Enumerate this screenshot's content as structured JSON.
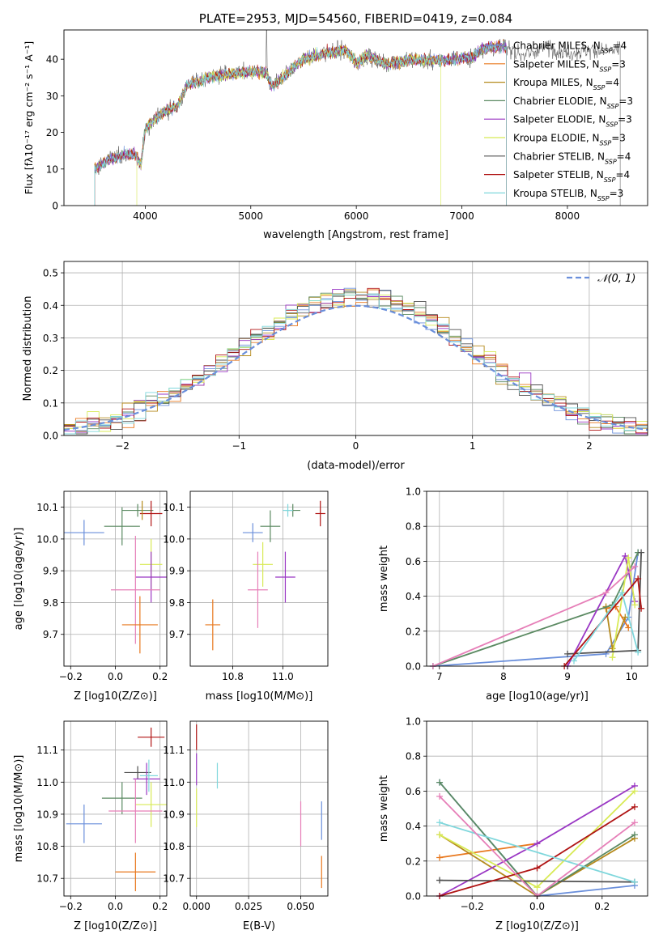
{
  "colors": [
    "#6a8fdb",
    "#e8781e",
    "#b58a1c",
    "#5b8a62",
    "#9a37c4",
    "#d8ea55",
    "#505050",
    "#b01414",
    "#7fd7dc"
  ],
  "extra_colors": {
    "pink": "#e67fb8",
    "black": "#000000"
  },
  "chart_data": [
    {
      "id": "spectrum",
      "type": "line",
      "title": "PLATE=2953, MJD=54560, FIBERID=0419, z=0.084",
      "xlabel": "wavelength [Angstrom, rest frame]",
      "ylabel": "Flux [fλ10⁻¹⁷ erg cm⁻² s⁻¹ A⁻¹]",
      "xlim": [
        3230,
        8760
      ],
      "ylim": [
        0,
        48
      ],
      "xticks": [
        "4000",
        "5000",
        "6000",
        "7000",
        "8000"
      ],
      "yticks": [
        "0",
        "10",
        "20",
        "30",
        "40"
      ],
      "grid": false,
      "legend_position": "right",
      "legend": [
        {
          "label": "Chabrier MILES, N",
          "sub": "SSP",
          "suffix": "=4"
        },
        {
          "label": "Salpeter MILES, N",
          "sub": "SSP",
          "suffix": "=3"
        },
        {
          "label": "Kroupa MILES, N",
          "sub": "SSP",
          "suffix": "=4"
        },
        {
          "label": "Chabrier ELODIE, N",
          "sub": "SSP",
          "suffix": "=3"
        },
        {
          "label": "Salpeter ELODIE, N",
          "sub": "SSP",
          "suffix": "=3"
        },
        {
          "label": "Kroupa ELODIE, N",
          "sub": "SSP",
          "suffix": "=3"
        },
        {
          "label": "Chabrier STELIB, N",
          "sub": "SSP",
          "suffix": "=4"
        },
        {
          "label": "Salpeter STELIB, N",
          "sub": "SSP",
          "suffix": "=4"
        },
        {
          "label": "Kroupa STELIB, N",
          "sub": "SSP",
          "suffix": "=3"
        }
      ],
      "continuum": [
        [
          3520,
          10
        ],
        [
          3650,
          12.5
        ],
        [
          3800,
          14
        ],
        [
          3900,
          14
        ],
        [
          3960,
          11
        ],
        [
          4000,
          21
        ],
        [
          4100,
          24
        ],
        [
          4200,
          26
        ],
        [
          4300,
          27
        ],
        [
          4400,
          33
        ],
        [
          4500,
          34
        ],
        [
          4600,
          35
        ],
        [
          4800,
          36
        ],
        [
          5000,
          36.5
        ],
        [
          5150,
          36.5
        ],
        [
          5200,
          32.5
        ],
        [
          5300,
          35
        ],
        [
          5500,
          40
        ],
        [
          5700,
          41.5
        ],
        [
          5900,
          42.5
        ],
        [
          6000,
          39
        ],
        [
          6100,
          41
        ],
        [
          6300,
          38.5
        ],
        [
          6500,
          40
        ],
        [
          6700,
          39.5
        ],
        [
          6900,
          40
        ],
        [
          7100,
          40.5
        ],
        [
          7200,
          43
        ],
        [
          7400,
          43.5
        ],
        [
          7600,
          41
        ],
        [
          7800,
          43.5
        ],
        [
          8000,
          41.5
        ],
        [
          8200,
          42.5
        ],
        [
          8500,
          42.5
        ]
      ],
      "model_ends": [
        7420,
        7420,
        7420,
        7420,
        7420,
        7420,
        7420,
        7420,
        7420
      ],
      "model_end_overrides": {
        "5": 6800
      },
      "model_starts": {
        "5": 3920
      }
    },
    {
      "id": "residuals",
      "type": "histogram",
      "xlabel": "(data-model)/error",
      "ylabel": "Normed distribution",
      "xlim": [
        -2.5,
        2.5
      ],
      "ylim": [
        0,
        0.535
      ],
      "xticks": [
        "-2",
        "-1",
        "0",
        "1",
        "2"
      ],
      "yticks": [
        "0.0",
        "0.1",
        "0.2",
        "0.3",
        "0.4",
        "0.5"
      ],
      "grid": true,
      "legend": "𝒩(0, 1)",
      "legend_position": "top-right",
      "bin_width": 0.1
    },
    {
      "id": "age-vs-Z",
      "type": "scatter",
      "xlabel": "Z [log10(Z/Z⊙)]",
      "ylabel": "age  [log10(age/yr)]",
      "xlim": [
        -0.23,
        0.23
      ],
      "ylim": [
        9.6,
        10.15
      ],
      "xticks": [
        "-0.2",
        "0.0",
        "0.2"
      ],
      "yticks": [
        "9.7",
        "9.8",
        "9.9",
        "10.0",
        "10.1"
      ],
      "grid": true,
      "points": [
        {
          "color": "#6a8fdb",
          "x": -0.14,
          "xerr": 0.09,
          "y": 10.02,
          "yerr": 0.04
        },
        {
          "color": "#5b8a62",
          "x": 0.03,
          "xerr": 0.08,
          "y": 10.04,
          "yerr": 0.06
        },
        {
          "color": "#5b8a62",
          "x": 0.1,
          "xerr": 0.07,
          "y": 10.09,
          "yerr": 0.02
        },
        {
          "color": "#b01414",
          "x": 0.16,
          "xerr": 0.05,
          "y": 10.08,
          "yerr": 0.04
        },
        {
          "color": "#b58a1c",
          "x": 0.12,
          "xerr": 0.0,
          "y": 10.09,
          "yerr": 0.03
        },
        {
          "color": "#d8ea55",
          "x": 0.16,
          "xerr": 0.05,
          "y": 9.92,
          "yerr": 0.08
        },
        {
          "color": "#9a37c4",
          "x": 0.16,
          "xerr": 0.07,
          "y": 9.88,
          "yerr": 0.08
        },
        {
          "color": "#e67fb8",
          "x": 0.09,
          "xerr": 0.11,
          "y": 9.84,
          "yerr": 0.17
        },
        {
          "color": "#e8781e",
          "x": 0.11,
          "xerr": 0.08,
          "y": 9.73,
          "yerr": 0.09
        }
      ]
    },
    {
      "id": "age-vs-mass",
      "type": "scatter",
      "xlabel": "mass [log10(M/M⊙)]",
      "ylabel": "",
      "xlim": [
        10.63,
        11.18
      ],
      "ylim": [
        9.6,
        10.15
      ],
      "xticks": [
        "10.8",
        "11.0"
      ],
      "yticks": [
        "9.7",
        "9.8",
        "9.9",
        "10.0",
        "10.1"
      ],
      "grid": true,
      "points": [
        {
          "color": "#6a8fdb",
          "x": 10.88,
          "xerr": 0.04,
          "y": 10.02,
          "yerr": 0.03
        },
        {
          "color": "#5b8a62",
          "x": 10.95,
          "xerr": 0.04,
          "y": 10.04,
          "yerr": 0.05
        },
        {
          "color": "#5b8a62",
          "x": 11.04,
          "xerr": 0.03,
          "y": 10.09,
          "yerr": 0.02
        },
        {
          "color": "#7fd7dc",
          "x": 11.02,
          "xerr": 0.02,
          "y": 10.09,
          "yerr": 0.02
        },
        {
          "color": "#b01414",
          "x": 11.15,
          "xerr": 0.02,
          "y": 10.08,
          "yerr": 0.04
        },
        {
          "color": "#d8ea55",
          "x": 10.92,
          "xerr": 0.04,
          "y": 9.92,
          "yerr": 0.07
        },
        {
          "color": "#9a37c4",
          "x": 11.01,
          "xerr": 0.04,
          "y": 9.88,
          "yerr": 0.08
        },
        {
          "color": "#e67fb8",
          "x": 10.9,
          "xerr": 0.04,
          "y": 9.84,
          "yerr": 0.12
        },
        {
          "color": "#e8781e",
          "x": 10.72,
          "xerr": 0.03,
          "y": 9.73,
          "yerr": 0.08
        }
      ]
    },
    {
      "id": "mass-weight-vs-age",
      "type": "line",
      "xlabel": "age  [log10(age/yr)]",
      "ylabel": "mass weight",
      "xlim": [
        6.8,
        10.25
      ],
      "ylim": [
        0,
        1
      ],
      "xticks": [
        "7",
        "8",
        "9",
        "10"
      ],
      "yticks": [
        "0.0",
        "0.2",
        "0.4",
        "0.6",
        "0.8",
        "1.0"
      ],
      "grid": true,
      "series": [
        {
          "color": "#6a8fdb",
          "points": [
            [
              6.9,
              0
            ],
            [
              9.6,
              0.07
            ],
            [
              9.95,
              0.28
            ],
            [
              10.1,
              0.65
            ]
          ]
        },
        {
          "color": "#e8781e",
          "points": [
            [
              9.6,
              0.33
            ],
            [
              9.75,
              0.34
            ],
            [
              9.95,
              0.22
            ]
          ]
        },
        {
          "color": "#b58a1c",
          "points": [
            [
              9.6,
              0.34
            ],
            [
              9.7,
              0.1
            ],
            [
              9.9,
              0.28
            ]
          ]
        },
        {
          "color": "#5b8a62",
          "points": [
            [
              6.9,
              0.0
            ],
            [
              9.7,
              0.35
            ],
            [
              10.1,
              0.65
            ]
          ]
        },
        {
          "color": "#9a37c4",
          "points": [
            [
              9.0,
              0.0
            ],
            [
              9.9,
              0.63
            ],
            [
              10.05,
              0.37
            ]
          ]
        },
        {
          "color": "#d8ea55",
          "points": [
            [
              9.7,
              0.05
            ],
            [
              9.95,
              0.62
            ],
            [
              10.05,
              0.35
            ]
          ]
        },
        {
          "color": "#505050",
          "points": [
            [
              9.0,
              0.07
            ],
            [
              10.1,
              0.09
            ],
            [
              10.15,
              0.65
            ]
          ]
        },
        {
          "color": "#b01414",
          "points": [
            [
              8.95,
              0.0
            ],
            [
              10.1,
              0.5
            ],
            [
              10.15,
              0.33
            ]
          ]
        },
        {
          "color": "#7fd7dc",
          "points": [
            [
              9.1,
              0.03
            ],
            [
              9.85,
              0.42
            ],
            [
              10.1,
              0.08
            ]
          ]
        },
        {
          "color": "#e67fb8",
          "points": [
            [
              6.9,
              0.0
            ],
            [
              9.6,
              0.42
            ],
            [
              10.05,
              0.57
            ]
          ]
        }
      ]
    },
    {
      "id": "mass-vs-Z",
      "type": "scatter",
      "xlabel": "Z [log10(Z/Z⊙)]",
      "ylabel": "mass [log10(M/M⊙)]",
      "xlim": [
        -0.23,
        0.23
      ],
      "ylim": [
        10.645,
        11.19
      ],
      "xticks": [
        "-0.2",
        "0.0",
        "0.2"
      ],
      "yticks": [
        "10.7",
        "10.8",
        "10.9",
        "11.0",
        "11.1"
      ],
      "grid": true,
      "points": [
        {
          "color": "#6a8fdb",
          "x": -0.14,
          "xerr": 0.08,
          "y": 10.87,
          "yerr": 0.06
        },
        {
          "color": "#5b8a62",
          "x": 0.03,
          "xerr": 0.09,
          "y": 10.95,
          "yerr": 0.05
        },
        {
          "color": "#505050",
          "x": 0.1,
          "xerr": 0.06,
          "y": 11.03,
          "yerr": 0.02
        },
        {
          "color": "#b01414",
          "x": 0.16,
          "xerr": 0.06,
          "y": 11.14,
          "yerr": 0.03
        },
        {
          "color": "#d8ea55",
          "x": 0.16,
          "xerr": 0.07,
          "y": 10.93,
          "yerr": 0.07
        },
        {
          "color": "#9a37c4",
          "x": 0.14,
          "xerr": 0.06,
          "y": 11.01,
          "yerr": 0.05
        },
        {
          "color": "#7fd7dc",
          "x": 0.15,
          "xerr": 0.04,
          "y": 11.02,
          "yerr": 0.05
        },
        {
          "color": "#e67fb8",
          "x": 0.09,
          "xerr": 0.12,
          "y": 10.91,
          "yerr": 0.1
        },
        {
          "color": "#e8781e",
          "x": 0.09,
          "xerr": 0.09,
          "y": 10.72,
          "yerr": 0.06
        }
      ]
    },
    {
      "id": "mass-vs-ebv",
      "type": "scatter",
      "xlabel": "E(B-V)",
      "ylabel": "",
      "xlim": [
        -0.003,
        0.063
      ],
      "ylim": [
        10.645,
        11.19
      ],
      "xticks": [
        "0.000",
        "0.025",
        "0.050"
      ],
      "yticks": [
        "10.7",
        "10.8",
        "10.9",
        "11.0",
        "11.1"
      ],
      "grid": true,
      "points": [
        {
          "color": "#b01414",
          "x": 0.0,
          "xerr": 0,
          "y": 11.14,
          "yerr": 0.04
        },
        {
          "color": "#9a37c4",
          "x": 0.0,
          "xerr": 0,
          "y": 11.04,
          "yerr": 0.05
        },
        {
          "color": "#d8ea55",
          "x": 0.0,
          "xerr": 0,
          "y": 10.92,
          "yerr": 0.06
        },
        {
          "color": "#7fd7dc",
          "x": 0.01,
          "xerr": 0,
          "y": 11.02,
          "yerr": 0.04
        },
        {
          "color": "#e67fb8",
          "x": 0.05,
          "xerr": 0,
          "y": 10.87,
          "yerr": 0.07
        },
        {
          "color": "#6a8fdb",
          "x": 0.06,
          "xerr": 0,
          "y": 10.88,
          "yerr": 0.06
        },
        {
          "color": "#e8781e",
          "x": 0.06,
          "xerr": 0,
          "y": 10.72,
          "yerr": 0.05
        }
      ]
    },
    {
      "id": "mass-weight-vs-Z",
      "type": "line",
      "xlabel": "Z [log10(Z/Z⊙)]",
      "ylabel": "mass weight",
      "xlim": [
        -0.34,
        0.34
      ],
      "ylim": [
        0,
        1
      ],
      "xticks": [
        "-0.2",
        "0.0",
        "0.2"
      ],
      "yticks": [
        "0.0",
        "0.2",
        "0.4",
        "0.6",
        "0.8",
        "1.0"
      ],
      "grid": true,
      "series": [
        {
          "color": "#6a8fdb",
          "points": [
            [
              -0.3,
              0.65
            ],
            [
              0.0,
              0.0
            ],
            [
              0.3,
              0.06
            ]
          ]
        },
        {
          "color": "#e8781e",
          "points": [
            [
              -0.3,
              0.22
            ],
            [
              0.0,
              0.3
            ]
          ]
        },
        {
          "color": "#b58a1c",
          "points": [
            [
              -0.3,
              0.35
            ],
            [
              0.0,
              0.0
            ],
            [
              0.3,
              0.33
            ]
          ]
        },
        {
          "color": "#5b8a62",
          "points": [
            [
              -0.3,
              0.65
            ],
            [
              0.0,
              0.0
            ],
            [
              0.3,
              0.35
            ]
          ]
        },
        {
          "color": "#9a37c4",
          "points": [
            [
              -0.3,
              0.0
            ],
            [
              0.0,
              0.3
            ],
            [
              0.3,
              0.63
            ]
          ]
        },
        {
          "color": "#d8ea55",
          "points": [
            [
              -0.3,
              0.35
            ],
            [
              0.0,
              0.05
            ],
            [
              0.3,
              0.6
            ]
          ]
        },
        {
          "color": "#505050",
          "points": [
            [
              -0.3,
              0.09
            ],
            [
              0.3,
              0.08
            ]
          ]
        },
        {
          "color": "#b01414",
          "points": [
            [
              -0.3,
              0.0
            ],
            [
              0.0,
              0.16
            ],
            [
              0.3,
              0.51
            ]
          ]
        },
        {
          "color": "#7fd7dc",
          "points": [
            [
              -0.3,
              0.42
            ],
            [
              0.3,
              0.08
            ]
          ]
        },
        {
          "color": "#e67fb8",
          "points": [
            [
              -0.3,
              0.57
            ],
            [
              0.0,
              0.0
            ],
            [
              0.3,
              0.42
            ]
          ]
        }
      ]
    }
  ]
}
